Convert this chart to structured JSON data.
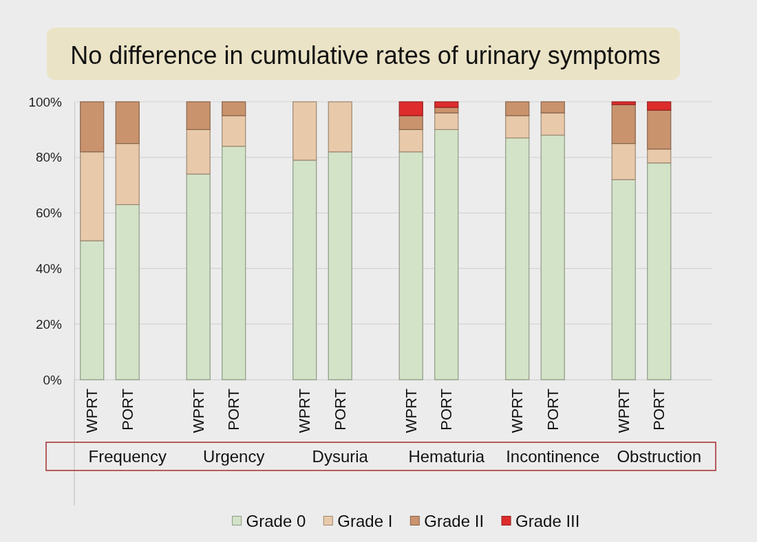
{
  "chart_data": {
    "type": "bar",
    "stacked": true,
    "title": "No difference in cumulative rates of urinary symptoms",
    "categories": [
      "WPRT",
      "PORT",
      null,
      "WPRT",
      "PORT",
      null,
      "WPRT",
      "PORT",
      null,
      "WPRT",
      "PORT",
      null,
      "WPRT",
      "PORT",
      null,
      "WPRT",
      "PORT",
      null
    ],
    "series": [
      {
        "name": "Grade 0",
        "color": "#d3e3c7",
        "values": [
          50,
          63,
          null,
          74,
          84,
          null,
          79,
          82,
          null,
          82,
          90,
          null,
          87,
          88,
          null,
          72,
          78,
          null
        ]
      },
      {
        "name": "Grade I",
        "color": "#e8c9aa",
        "values": [
          32,
          22,
          null,
          16,
          11,
          null,
          21,
          18,
          null,
          8,
          6,
          null,
          8,
          8,
          null,
          13,
          5,
          null
        ]
      },
      {
        "name": "Grade II",
        "color": "#c9936e",
        "values": [
          18,
          15,
          null,
          10,
          5,
          null,
          0,
          0,
          null,
          5,
          2,
          null,
          5,
          4,
          null,
          14,
          14,
          null
        ]
      },
      {
        "name": "Grade III",
        "color": "#de2c2c",
        "values": [
          0,
          0,
          null,
          0,
          0,
          null,
          0,
          0,
          null,
          5,
          2,
          null,
          0,
          0,
          null,
          1,
          3,
          null
        ]
      }
    ],
    "ylim": [
      0,
      100
    ],
    "yticks": [
      {
        "value": 0,
        "label": "0%"
      },
      {
        "value": 20,
        "label": "20%"
      },
      {
        "value": 40,
        "label": "40%"
      },
      {
        "value": 60,
        "label": "60%"
      },
      {
        "value": 80,
        "label": "80%"
      },
      {
        "value": 100,
        "label": "100%"
      }
    ],
    "grid": "y",
    "legend": "bottom",
    "annotations": [
      "Frequency",
      "Urgency",
      "Dysuria",
      "Hematuria",
      "Incontinence",
      "Obstruction"
    ]
  }
}
